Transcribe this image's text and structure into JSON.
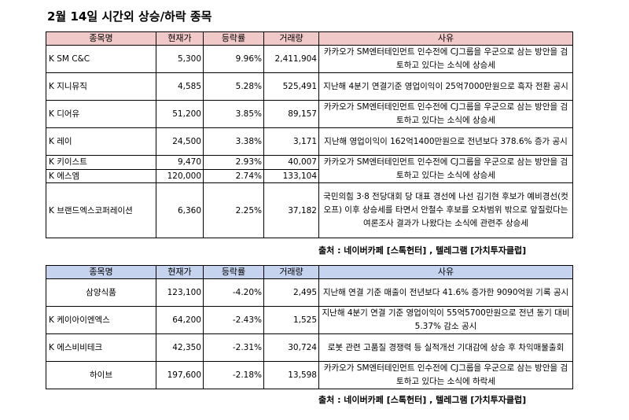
{
  "title": "2월 14일  시간외 상승/하락 종목",
  "headers": {
    "name": "종목명",
    "price": "현재가",
    "change": "등락률",
    "volume": "거래량",
    "reason": "사유"
  },
  "up_table": {
    "rows": [
      {
        "name": "K SM C&C",
        "price": "5,300",
        "change": "9.96%",
        "volume": "2,411,904",
        "reason": "카카오가 SM엔터테인먼트 인수전에 CJ그룹을 우군으로 삼는 방안을 검토하고 있다는 소식에 상승세"
      },
      {
        "name": "K 지니뮤직",
        "price": "4,585",
        "change": "5.28%",
        "volume": "525,491",
        "reason": "지난해 4분기 연결기준 영업이익이 25억7000만원으로 흑자 전환 공시"
      },
      {
        "name": "K 디어유",
        "price": "51,200",
        "change": "3.85%",
        "volume": "89,157",
        "reason": "카카오가 SM엔터테인먼트 인수전에 CJ그룹을 우군으로 삼는 방안을 검토하고 있다는 소식에 상승세"
      },
      {
        "name": "K 레이",
        "price": "24,500",
        "change": "3.38%",
        "volume": "3,171",
        "reason": "지난해 영업이익이 162억1400만원으로 전년보다 378.6% 증가 공시"
      },
      {
        "name": "K 키이스트",
        "price": "9,470",
        "change": "2.93%",
        "volume": "40,007",
        "reason": "카카오가 SM엔터테인먼트 인수전에 CJ그룹을 우군으로 삼는 방안을 검토하고 있다는 소식에 상승세"
      },
      {
        "name": "K 에스엠",
        "price": "120,000",
        "change": "2.74%",
        "volume": "133,104",
        "reason": ""
      },
      {
        "name": "K 브랜드엑스코퍼레이션",
        "price": "6,360",
        "change": "2.25%",
        "volume": "37,182",
        "reason": "국민의힘 3·8 전당대회 당 대표 경선에 나선 김기현 후보가 예비경선(컷오프) 이후 상승세를 타면서 안철수 후보를 오차범위 밖으로 앞질렀다는 여론조사 결과가 나왔다는 소식에 관련주 상승세"
      }
    ]
  },
  "down_table": {
    "rows": [
      {
        "name": "삼양식품",
        "price": "123,100",
        "change": "-4.20%",
        "volume": "2,495",
        "reason": "지난해 연결 기준 매출이 전년보다 41.6% 증가한 9090억원 기록 공시"
      },
      {
        "name": "K 케이아이엔엑스",
        "price": "64,200",
        "change": "-2.43%",
        "volume": "1,525",
        "reason": "지난해 4분기 연결 기준 영업이익이 55억5700만원으로 전년 동기 대비 5.37% 감소 공시"
      },
      {
        "name": "K 에스비비테크",
        "price": "42,350",
        "change": "-2.31%",
        "volume": "30,724",
        "reason": "로봇 관련 고품질 경쟁력 등 실적개선 기대감에 상승 후 차익매물출회"
      },
      {
        "name": "하이브",
        "price": "197,600",
        "change": "-2.18%",
        "volume": "13,598",
        "reason": "카카오가 SM엔터테인먼트 인수전에 CJ그룹을 우군으로 삼는 방안을 검토하고 있다는 소식에 하락세"
      }
    ]
  },
  "source": "출처 : 네이버카페 [스톡헌터] , 텔레그램 [가치투자클럽]"
}
